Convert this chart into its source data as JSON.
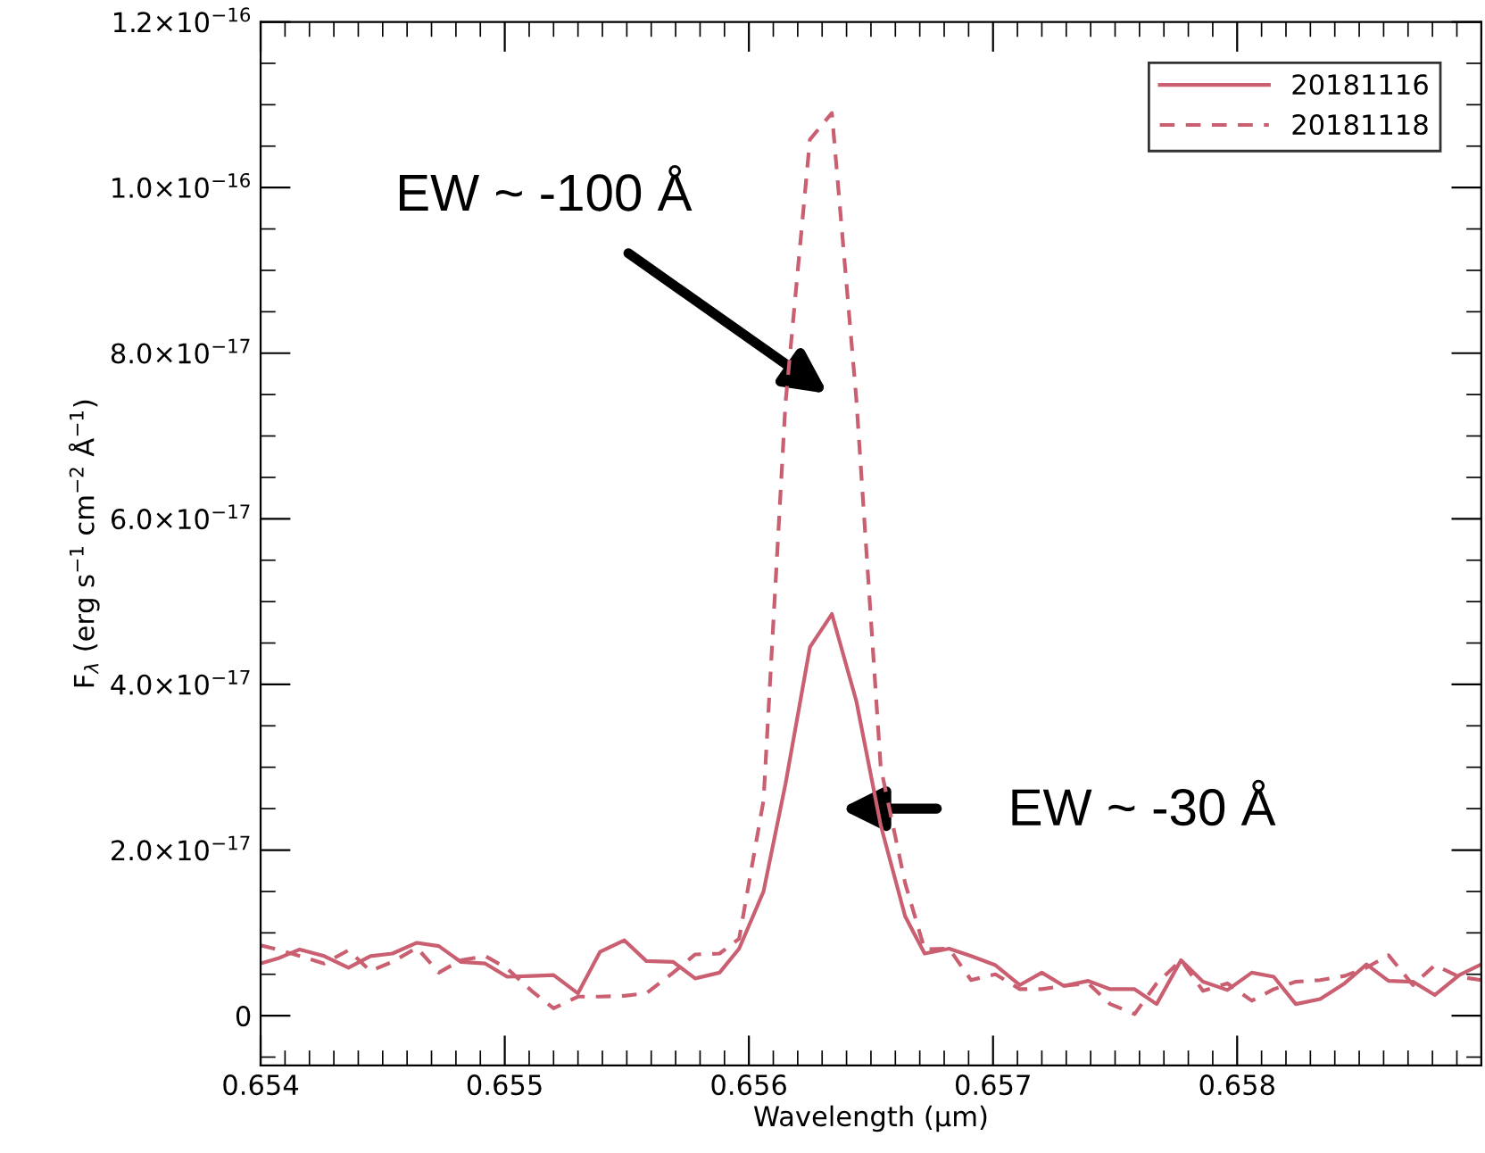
{
  "chart_data": {
    "type": "line",
    "xlabel": "Wavelength (µm)",
    "ylabel": "F$_{λ}$ (erg s$^{−1}$ cm$^{−2}$ Å$^{−1}$)",
    "x": [
      0.654,
      0.65407,
      0.65416,
      0.65426,
      0.65436,
      0.65445,
      0.65454,
      0.65464,
      0.65473,
      0.65482,
      0.65492,
      0.65501,
      0.65511,
      0.6552,
      0.6553,
      0.65539,
      0.65549,
      0.65558,
      0.65569,
      0.65578,
      0.65588,
      0.65596,
      0.65606,
      0.65615,
      0.65625,
      0.65634,
      0.65644,
      0.65654,
      0.65664,
      0.65672,
      0.65682,
      0.65691,
      0.65701,
      0.65711,
      0.6572,
      0.65729,
      0.65739,
      0.65748,
      0.65758,
      0.65767,
      0.65777,
      0.65786,
      0.65796,
      0.65806,
      0.65815,
      0.65824,
      0.65834,
      0.65844,
      0.65853,
      0.65862,
      0.65872,
      0.65881,
      0.65891,
      0.659
    ],
    "series": [
      {
        "name": "20181116",
        "color": "#c95f70",
        "line_style": "solid",
        "values": [
          6.3e-18,
          6.9e-18,
          8e-18,
          7.2e-18,
          5.8e-18,
          7.2e-18,
          7.5e-18,
          8.8e-18,
          8.4e-18,
          6.5e-18,
          6.3e-18,
          4.7e-18,
          4.8e-18,
          4.9e-18,
          2.7e-18,
          7.7e-18,
          9.1e-18,
          6.6e-18,
          6.5e-18,
          4.5e-18,
          5.2e-18,
          8.1e-18,
          1.5e-17,
          2.8e-17,
          4.45e-17,
          4.85e-17,
          3.8e-17,
          2.3e-17,
          1.2e-17,
          7.5e-18,
          8.1e-18,
          7.2e-18,
          6.1e-18,
          3.7e-18,
          5.2e-18,
          3.6e-18,
          4.2e-18,
          3.2e-18,
          3.2e-18,
          1.4e-18,
          6.7e-18,
          4.1e-18,
          3.1e-18,
          5.2e-18,
          4.7e-18,
          1.4e-18,
          2e-18,
          3.9e-18,
          6.2e-18,
          4.2e-18,
          4.1e-18,
          2.5e-18,
          4.9e-18,
          6.2e-18
        ]
      },
      {
        "name": "20181118",
        "color": "#c95f70",
        "line_style": "dashed",
        "values": [
          8.5e-18,
          8e-18,
          7.2e-18,
          6.3e-18,
          7.9e-18,
          5.4e-18,
          6.5e-18,
          8.2e-18,
          5.2e-18,
          6.7e-18,
          7.2e-18,
          5.7e-18,
          3e-18,
          9e-19,
          2.3e-18,
          2.3e-18,
          2.4e-18,
          2.7e-18,
          5.2e-18,
          7.4e-18,
          7.5e-18,
          9.3e-18,
          2.6e-17,
          7.4e-17,
          1.058e-16,
          1.09e-16,
          7.45e-17,
          3e-17,
          1.6e-17,
          8e-18,
          8.1e-18,
          4.3e-18,
          5e-18,
          3.2e-18,
          3.2e-18,
          3.6e-18,
          3.9e-18,
          1.4e-18,
          2e-19,
          3.9e-18,
          6.7e-18,
          3e-18,
          3.9e-18,
          1.8e-18,
          3.2e-18,
          4.1e-18,
          4.3e-18,
          4.8e-18,
          5.8e-18,
          7.3e-18,
          3.7e-18,
          6.1e-18,
          4.7e-18,
          4.3e-18
        ]
      }
    ],
    "xlim": [
      0.654,
      0.659
    ],
    "xticks": [
      0.654,
      0.655,
      0.656,
      0.657,
      0.658
    ],
    "ylim": [
      -6e-18,
      1.2e-16
    ],
    "yticks": [
      {
        "value": 0,
        "label": "0"
      },
      {
        "value": 2e-17,
        "label": "2.0×10$^{−17}$"
      },
      {
        "value": 4e-17,
        "label": "4.0×10$^{−17}$"
      },
      {
        "value": 6e-17,
        "label": "6.0×10$^{−17}$"
      },
      {
        "value": 8e-17,
        "label": "8.0×10$^{−17}$"
      },
      {
        "value": 1e-16,
        "label": "1.0×10$^{−16}$"
      },
      {
        "value": 1.2e-16,
        "label": "1.2×10$^{−16}$"
      }
    ],
    "annotations": [
      "EW ~ -100 Å",
      "EW ~ -30 Å"
    ],
    "legend": "top right",
    "grid": false,
    "marker": "none"
  }
}
